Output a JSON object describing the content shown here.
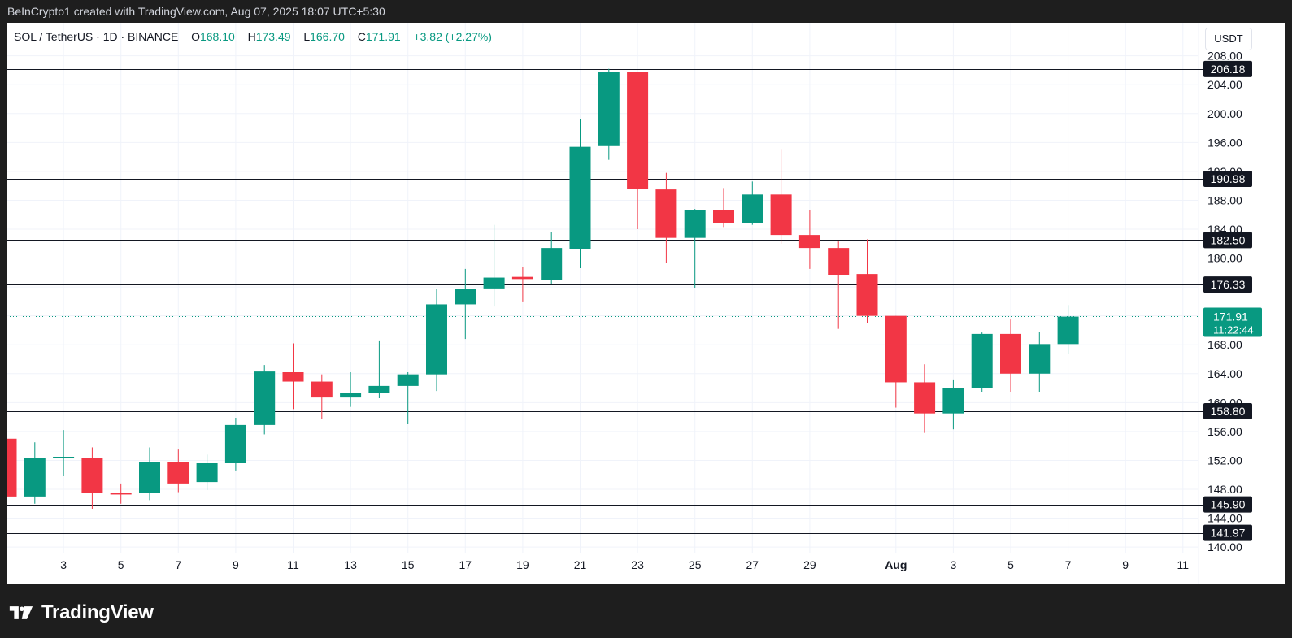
{
  "header": {
    "attribution": "BeInCrypto1 created with TradingView.com, Aug 07, 2025 18:07 UTC+5:30"
  },
  "legend": {
    "symbol": "SOL / TetherUS · 1D · BINANCE",
    "open_label": "O",
    "open": "168.10",
    "high_label": "H",
    "high": "173.49",
    "low_label": "L",
    "low": "166.70",
    "close_label": "C",
    "close": "171.91",
    "change": "+3.82 (+2.27%)"
  },
  "currency_button": "USDT",
  "footer": {
    "brand": "TradingView",
    "logo_icon": "tradingview-logo-icon"
  },
  "colors": {
    "up": "#089981",
    "down": "#f23645",
    "level_line": "#131722",
    "badge_bg": "#131722",
    "price_badge": "#089981"
  },
  "chart_data": {
    "type": "candlestick",
    "ylim": [
      139.0,
      211.0
    ],
    "y_ticks": [
      "140.00",
      "144.00",
      "148.00",
      "152.00",
      "156.00",
      "160.00",
      "164.00",
      "168.00",
      "172.00",
      "176.00",
      "180.00",
      "184.00",
      "188.00",
      "192.00",
      "196.00",
      "200.00",
      "204.00",
      "208.00"
    ],
    "x_ticks": [
      {
        "label": "l",
        "day": 0
      },
      {
        "label": "3",
        "day": 2
      },
      {
        "label": "5",
        "day": 4
      },
      {
        "label": "7",
        "day": 6
      },
      {
        "label": "9",
        "day": 8
      },
      {
        "label": "11",
        "day": 10
      },
      {
        "label": "13",
        "day": 12
      },
      {
        "label": "15",
        "day": 14
      },
      {
        "label": "17",
        "day": 16
      },
      {
        "label": "19",
        "day": 18
      },
      {
        "label": "21",
        "day": 20
      },
      {
        "label": "23",
        "day": 22
      },
      {
        "label": "25",
        "day": 24
      },
      {
        "label": "27",
        "day": 26
      },
      {
        "label": "29",
        "day": 28
      },
      {
        "label": "Aug",
        "day": 31,
        "bold": true
      },
      {
        "label": "3",
        "day": 33
      },
      {
        "label": "5",
        "day": 35
      },
      {
        "label": "7",
        "day": 37
      },
      {
        "label": "9",
        "day": 39
      },
      {
        "label": "11",
        "day": 41
      }
    ],
    "candles": [
      {
        "day": 0,
        "o": 155.0,
        "h": 155.5,
        "l": 146.5,
        "c": 147.0
      },
      {
        "day": 1,
        "o": 147.0,
        "h": 154.5,
        "l": 146.0,
        "c": 152.3
      },
      {
        "day": 2,
        "o": 152.3,
        "h": 156.2,
        "l": 149.8,
        "c": 152.5
      },
      {
        "day": 3,
        "o": 152.3,
        "h": 153.8,
        "l": 145.3,
        "c": 147.5
      },
      {
        "day": 4,
        "o": 147.5,
        "h": 148.8,
        "l": 146.0,
        "c": 147.3
      },
      {
        "day": 5,
        "o": 147.5,
        "h": 153.8,
        "l": 146.5,
        "c": 151.8
      },
      {
        "day": 6,
        "o": 151.8,
        "h": 153.5,
        "l": 147.6,
        "c": 148.8
      },
      {
        "day": 7,
        "o": 149.0,
        "h": 152.8,
        "l": 147.9,
        "c": 151.6
      },
      {
        "day": 8,
        "o": 151.6,
        "h": 157.9,
        "l": 150.6,
        "c": 156.9
      },
      {
        "day": 9,
        "o": 156.9,
        "h": 165.2,
        "l": 155.6,
        "c": 164.3
      },
      {
        "day": 10,
        "o": 164.2,
        "h": 168.2,
        "l": 159.1,
        "c": 162.9
      },
      {
        "day": 11,
        "o": 162.9,
        "h": 163.9,
        "l": 157.7,
        "c": 160.7
      },
      {
        "day": 12,
        "o": 160.7,
        "h": 164.2,
        "l": 159.4,
        "c": 161.3
      },
      {
        "day": 13,
        "o": 161.3,
        "h": 168.6,
        "l": 160.6,
        "c": 162.3
      },
      {
        "day": 14,
        "o": 162.3,
        "h": 164.2,
        "l": 157.0,
        "c": 163.9
      },
      {
        "day": 15,
        "o": 163.9,
        "h": 175.7,
        "l": 161.6,
        "c": 173.6
      },
      {
        "day": 16,
        "o": 173.6,
        "h": 178.5,
        "l": 168.8,
        "c": 175.7
      },
      {
        "day": 17,
        "o": 175.8,
        "h": 184.6,
        "l": 173.3,
        "c": 177.3
      },
      {
        "day": 18,
        "o": 177.4,
        "h": 178.8,
        "l": 174.0,
        "c": 177.1
      },
      {
        "day": 19,
        "o": 177.0,
        "h": 183.6,
        "l": 176.4,
        "c": 181.4
      },
      {
        "day": 20,
        "o": 181.3,
        "h": 199.2,
        "l": 178.6,
        "c": 195.4
      },
      {
        "day": 21,
        "o": 195.5,
        "h": 206.2,
        "l": 193.6,
        "c": 205.8
      },
      {
        "day": 22,
        "o": 205.8,
        "h": 205.8,
        "l": 184.0,
        "c": 189.6
      },
      {
        "day": 23,
        "o": 189.5,
        "h": 191.8,
        "l": 179.3,
        "c": 182.8
      },
      {
        "day": 24,
        "o": 182.8,
        "h": 186.8,
        "l": 175.9,
        "c": 186.7
      },
      {
        "day": 25,
        "o": 186.7,
        "h": 189.7,
        "l": 184.3,
        "c": 184.9
      },
      {
        "day": 26,
        "o": 184.9,
        "h": 190.6,
        "l": 184.6,
        "c": 188.8
      },
      {
        "day": 27,
        "o": 188.8,
        "h": 195.1,
        "l": 182.0,
        "c": 183.2
      },
      {
        "day": 28,
        "o": 183.2,
        "h": 186.7,
        "l": 178.5,
        "c": 181.4
      },
      {
        "day": 29,
        "o": 181.4,
        "h": 182.3,
        "l": 170.2,
        "c": 177.7
      },
      {
        "day": 30,
        "o": 177.8,
        "h": 182.6,
        "l": 171.0,
        "c": 172.0
      },
      {
        "day": 31,
        "o": 172.0,
        "h": 172.0,
        "l": 159.3,
        "c": 162.8
      },
      {
        "day": 32,
        "o": 162.8,
        "h": 165.3,
        "l": 155.8,
        "c": 158.5
      },
      {
        "day": 33,
        "o": 158.5,
        "h": 163.2,
        "l": 156.3,
        "c": 162.0
      },
      {
        "day": 34,
        "o": 162.0,
        "h": 169.7,
        "l": 161.5,
        "c": 169.5
      },
      {
        "day": 35,
        "o": 169.5,
        "h": 171.5,
        "l": 161.5,
        "c": 164.0
      },
      {
        "day": 36,
        "o": 164.0,
        "h": 169.8,
        "l": 161.5,
        "c": 168.1
      },
      {
        "day": 37,
        "o": 168.1,
        "h": 173.5,
        "l": 166.7,
        "c": 171.9
      }
    ],
    "levels": [
      "206.18",
      "190.98",
      "182.50",
      "176.33",
      "158.80",
      "145.90",
      "141.97"
    ],
    "last_price": "171.91",
    "countdown": "11:22:44"
  }
}
